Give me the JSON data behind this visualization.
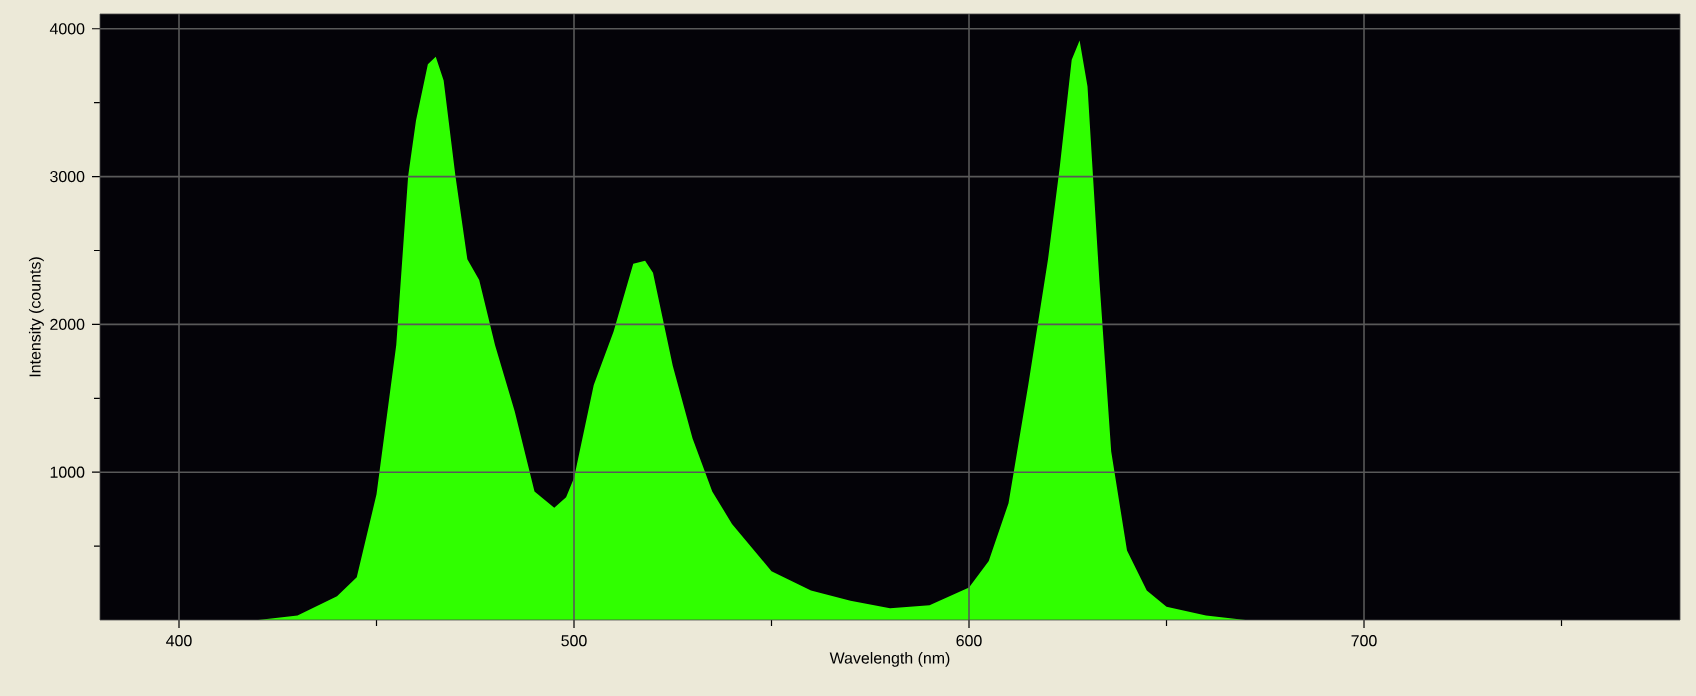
{
  "chart_data": {
    "type": "area",
    "xlabel": "Wavelength (nm)",
    "ylabel": "Intensity (counts)",
    "xlim": [
      380,
      780
    ],
    "ylim": [
      0,
      4100
    ],
    "xticks": [
      400,
      {
        "value": 450,
        "label": null
      },
      500,
      {
        "value": 550,
        "label": null
      },
      600,
      {
        "value": 650,
        "label": null
      },
      700,
      {
        "value": 750,
        "label": null
      }
    ],
    "yticks": [
      {
        "value": 500,
        "label": null
      },
      1000,
      {
        "value": 1500,
        "label": null
      },
      2000,
      {
        "value": 2500,
        "label": null
      },
      3000,
      {
        "value": 3500,
        "label": null
      },
      4000
    ],
    "grid": true,
    "x": [
      420,
      430,
      440,
      445,
      450,
      455,
      458,
      460,
      463,
      465,
      467,
      470,
      473,
      476,
      480,
      485,
      490,
      495,
      498,
      500,
      505,
      510,
      515,
      518,
      520,
      525,
      530,
      535,
      540,
      550,
      560,
      570,
      580,
      590,
      600,
      605,
      610,
      615,
      620,
      623,
      626,
      628,
      630,
      633,
      636,
      640,
      645,
      650,
      660,
      670
    ],
    "series": [
      {
        "values": [
          0,
          30,
          160,
          290,
          850,
          1860,
          3000,
          3380,
          3760,
          3810,
          3650,
          3000,
          2440,
          2300,
          1860,
          1410,
          870,
          760,
          830,
          960,
          1590,
          1950,
          2410,
          2430,
          2350,
          1720,
          1230,
          870,
          650,
          330,
          200,
          130,
          80,
          100,
          220,
          400,
          790,
          1590,
          2440,
          3070,
          3790,
          3920,
          3610,
          2300,
          1140,
          470,
          200,
          90,
          30,
          0
        ],
        "color": "#30ff00"
      }
    ]
  }
}
